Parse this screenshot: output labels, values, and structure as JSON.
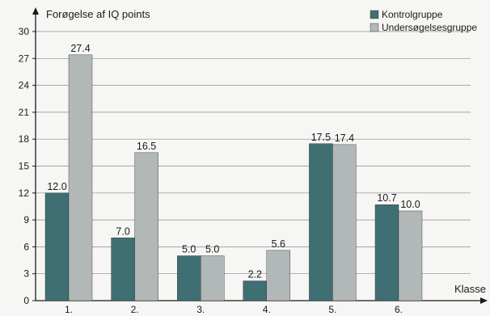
{
  "chart_data": {
    "type": "bar",
    "title": "",
    "ylabel": "Forøgelse af IQ points",
    "xlabel": "Klasse",
    "categories": [
      "1.",
      "2.",
      "3.",
      "4.",
      "5.",
      "6."
    ],
    "yticks": [
      0,
      3,
      6,
      9,
      12,
      15,
      18,
      21,
      24,
      27,
      30
    ],
    "ylim": [
      0,
      30
    ],
    "grid": "horizontal",
    "legend_position": "top-right",
    "series": [
      {
        "name": "Kontrolgruppe",
        "color": "#3f6f72",
        "values": [
          12.0,
          7.0,
          5.0,
          2.2,
          17.5,
          10.7
        ],
        "labels": [
          "12.0",
          "7.0",
          "5.0",
          "2.2",
          "17.5",
          "10.7"
        ]
      },
      {
        "name": "Undersøgelsesgruppe",
        "color": "#b2b7b8",
        "values": [
          27.4,
          16.5,
          5.0,
          5.6,
          17.4,
          10.0
        ],
        "labels": [
          "27.4",
          "16.5",
          "5.0",
          "5.6",
          "17.4",
          "10.0"
        ]
      }
    ]
  }
}
